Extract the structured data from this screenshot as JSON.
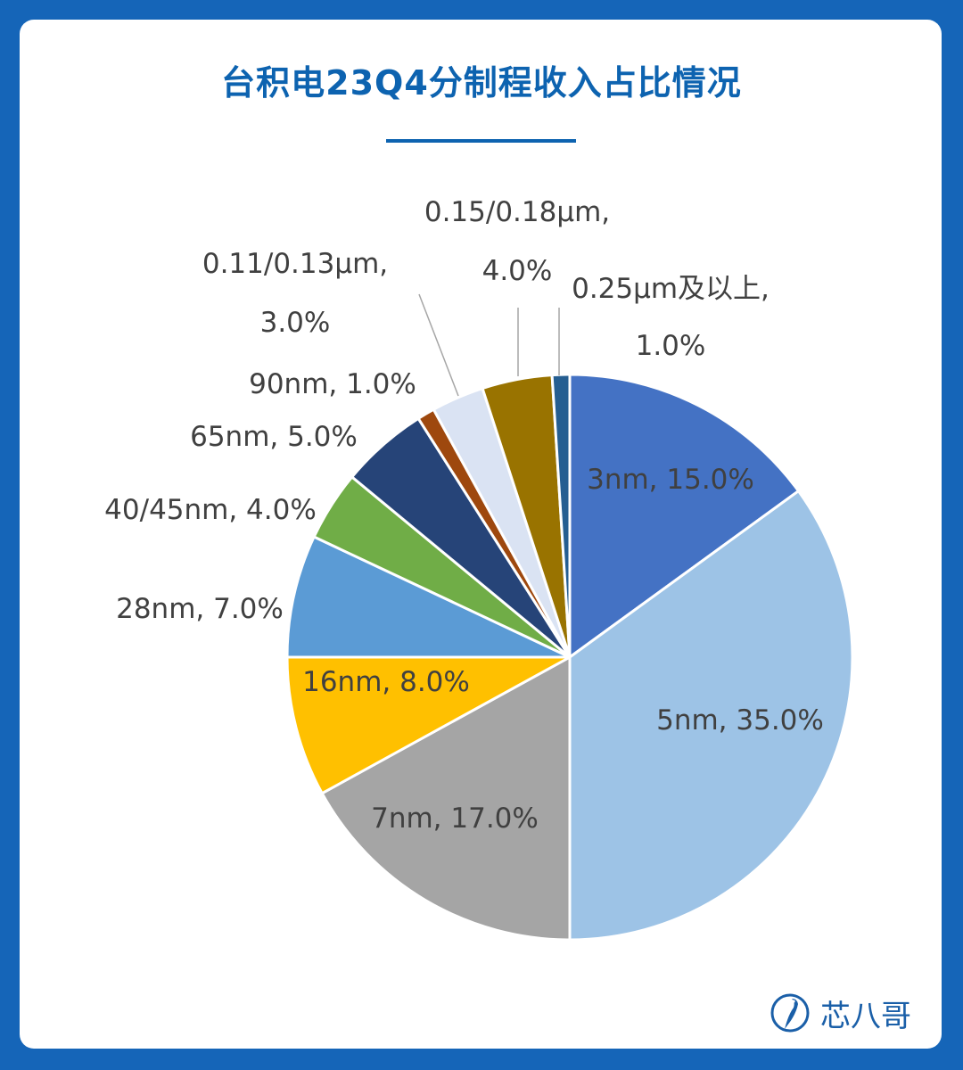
{
  "title": "台积电23Q4分制程收入占比情况",
  "brand": {
    "name": "芯八哥",
    "watermark_icon": "heron-logo-icon",
    "color": "#1a5fa8"
  },
  "chart_data": {
    "type": "pie",
    "title": "台积电23Q4分制程收入占比情况",
    "start_angle_deg": 0,
    "direction": "clockwise",
    "slices": [
      {
        "label": "3nm",
        "value": 15.0,
        "display": "3nm, 15.0%",
        "color": "#4472c4"
      },
      {
        "label": "5nm",
        "value": 35.0,
        "display": "5nm, 35.0%",
        "color": "#9dc3e6"
      },
      {
        "label": "7nm",
        "value": 17.0,
        "display": "7nm, 17.0%",
        "color": "#a5a5a5"
      },
      {
        "label": "16nm",
        "value": 8.0,
        "display": "16nm, 8.0%",
        "color": "#ffc000"
      },
      {
        "label": "28nm",
        "value": 7.0,
        "display": "28nm, 7.0%",
        "color": "#5b9bd5"
      },
      {
        "label": "40/45nm",
        "value": 4.0,
        "display": "40/45nm, 4.0%",
        "color": "#70ad47"
      },
      {
        "label": "65nm",
        "value": 5.0,
        "display": "65nm, 5.0%",
        "color": "#264478"
      },
      {
        "label": "90nm",
        "value": 1.0,
        "display": "90nm, 1.0%",
        "color": "#9e480e"
      },
      {
        "label": "0.11/0.13µm",
        "value": 3.0,
        "display": [
          "0.11/0.13µm,",
          "3.0%"
        ],
        "color": "#dae3f3"
      },
      {
        "label": "0.15/0.18µm",
        "value": 4.0,
        "display": [
          "0.15/0.18µm,",
          "4.0%"
        ],
        "color": "#997300"
      },
      {
        "label": "0.25µm及以上",
        "value": 1.0,
        "display": [
          "0.25µm及以上,",
          "1.0%"
        ],
        "color": "#255e91"
      }
    ]
  }
}
